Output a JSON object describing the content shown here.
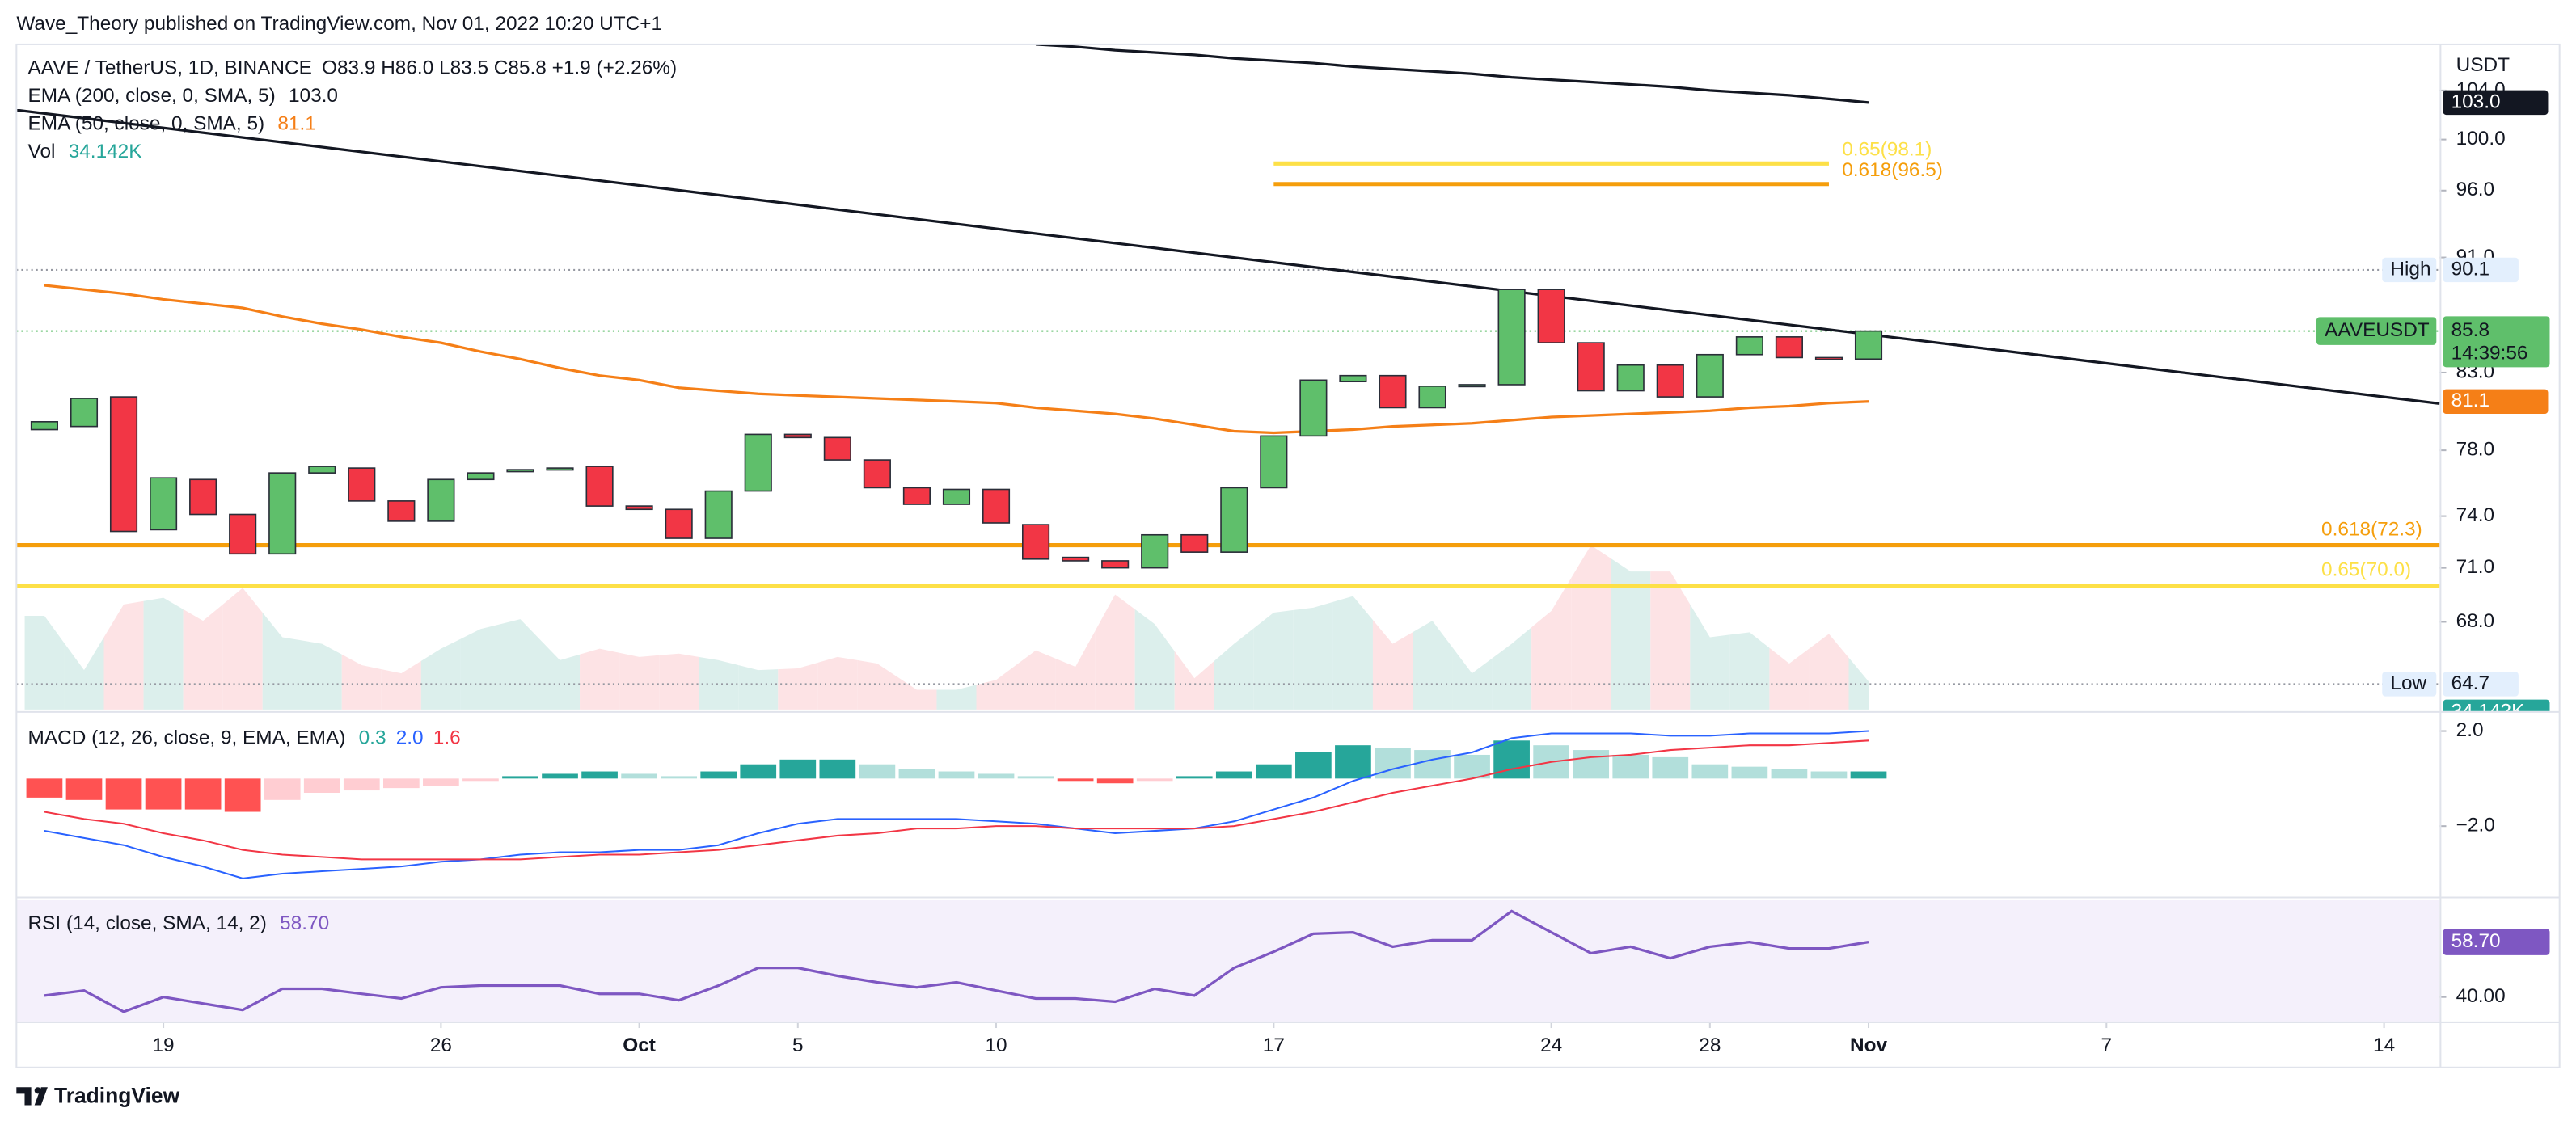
{
  "header": {
    "published": "Wave_Theory published on TradingView.com, Nov 01, 2022 10:20 UTC+1",
    "brand": "TradingView"
  },
  "chart_data": {
    "type": "candlestick",
    "title": "AAVE / TetherUS, 1D, BINANCE",
    "ohlc_legend": "O83.9 H86.0 L83.5 C85.8 +1.9 (+2.26%)",
    "symbol": "AAVEUSDT",
    "countdown": "14:39:56",
    "currency": "USDT",
    "x": [
      "2022-09-16",
      "2022-09-17",
      "2022-09-18",
      "2022-09-19",
      "2022-09-20",
      "2022-09-21",
      "2022-09-22",
      "2022-09-23",
      "2022-09-24",
      "2022-09-25",
      "2022-09-26",
      "2022-09-27",
      "2022-09-28",
      "2022-09-29",
      "2022-09-30",
      "2022-10-01",
      "2022-10-02",
      "2022-10-03",
      "2022-10-04",
      "2022-10-05",
      "2022-10-06",
      "2022-10-07",
      "2022-10-08",
      "2022-10-09",
      "2022-10-10",
      "2022-10-11",
      "2022-10-12",
      "2022-10-13",
      "2022-10-14",
      "2022-10-15",
      "2022-10-16",
      "2022-10-17",
      "2022-10-18",
      "2022-10-19",
      "2022-10-20",
      "2022-10-21",
      "2022-10-22",
      "2022-10-23",
      "2022-10-24",
      "2022-10-25",
      "2022-10-26",
      "2022-10-27",
      "2022-10-28",
      "2022-10-29",
      "2022-10-30",
      "2022-10-31",
      "2022-11-01"
    ],
    "open": [
      79.3,
      79.5,
      81.4,
      73.2,
      76.2,
      74.1,
      71.8,
      76.6,
      76.9,
      74.9,
      73.7,
      76.2,
      76.7,
      76.8,
      77.0,
      74.6,
      74.4,
      72.7,
      75.5,
      79.0,
      78.8,
      77.4,
      75.7,
      74.7,
      75.6,
      73.5,
      71.6,
      71.4,
      71.0,
      72.9,
      71.9,
      75.7,
      78.9,
      82.4,
      82.8,
      80.7,
      82.1,
      82.2,
      88.7,
      85.0,
      81.8,
      83.5,
      81.4,
      84.2,
      85.4,
      84.0,
      83.9
    ],
    "high": {
      "label": "High",
      "value": 90.1
    },
    "low": {
      "label": "Low",
      "value": 64.7
    },
    "close": [
      79.8,
      81.3,
      73.1,
      76.3,
      74.1,
      71.8,
      76.6,
      77.0,
      74.9,
      73.7,
      76.2,
      76.6,
      76.8,
      76.9,
      74.6,
      74.4,
      72.7,
      75.5,
      79.0,
      78.8,
      77.4,
      75.7,
      74.7,
      75.6,
      73.6,
      71.5,
      71.4,
      71.0,
      72.9,
      71.9,
      75.7,
      78.9,
      82.5,
      82.8,
      80.7,
      82.1,
      82.2,
      88.7,
      85.0,
      81.8,
      83.5,
      81.4,
      84.2,
      85.4,
      84.0,
      83.9,
      85.8
    ],
    "up_color": "#5fbf6b",
    "down_color": "#f23645",
    "log_scale": true,
    "grid": false,
    "ylim": [
      63.4,
      107.9
    ],
    "yticks": [
      {
        "value": 68,
        "label": "68.0"
      },
      {
        "value": 71,
        "label": "71.0"
      },
      {
        "value": 74,
        "label": "74.0"
      },
      {
        "value": 78,
        "label": "78.0"
      },
      {
        "value": 83,
        "label": "83.0"
      },
      {
        "value": 91,
        "label": "91.0"
      },
      {
        "value": 96,
        "label": "96.0"
      },
      {
        "value": 100,
        "label": "100.0"
      },
      {
        "value": 104,
        "label": "104.0"
      }
    ],
    "xlim": [
      "2022-09-15",
      "2022-11-15"
    ],
    "xticks": [
      {
        "value": "2022-09-19",
        "label": "19"
      },
      {
        "value": "2022-09-26",
        "label": "26"
      },
      {
        "value": "2022-10-01",
        "label": "Oct"
      },
      {
        "value": "2022-10-05",
        "label": "5"
      },
      {
        "value": "2022-10-10",
        "label": "10"
      },
      {
        "value": "2022-10-17",
        "label": "17"
      },
      {
        "value": "2022-10-24",
        "label": "24"
      },
      {
        "value": "2022-10-28",
        "label": "28"
      },
      {
        "value": "2022-11-01",
        "label": "Nov"
      },
      {
        "value": "2022-11-07",
        "label": "7"
      },
      {
        "value": "2022-11-14",
        "label": "14"
      }
    ],
    "series": [
      {
        "name": "EMA (200, close, 0, SMA, 5)",
        "legend_value": "103.0",
        "color": "#131722",
        "values": [
          null,
          null,
          null,
          null,
          null,
          null,
          null,
          null,
          null,
          null,
          null,
          null,
          null,
          null,
          null,
          null,
          null,
          null,
          null,
          null,
          null,
          null,
          null,
          null,
          null,
          107.9,
          107.7,
          107.4,
          107.2,
          107.0,
          106.7,
          106.5,
          106.3,
          106.0,
          105.8,
          105.6,
          105.4,
          105.1,
          104.9,
          104.7,
          104.5,
          104.3,
          104.0,
          103.8,
          103.6,
          103.3,
          103.0
        ]
      },
      {
        "name": "EMA (50, close, 0, SMA, 5)",
        "legend_value": "81.1",
        "color": "#f57f17",
        "values": [
          89.0,
          88.7,
          88.4,
          88.0,
          87.7,
          87.4,
          86.8,
          86.3,
          85.9,
          85.4,
          85.0,
          84.4,
          83.9,
          83.3,
          82.8,
          82.5,
          82.0,
          81.8,
          81.6,
          81.5,
          81.4,
          81.3,
          81.2,
          81.1,
          81.0,
          80.7,
          80.5,
          80.3,
          80.0,
          79.6,
          79.2,
          79.1,
          79.2,
          79.3,
          79.5,
          79.6,
          79.7,
          79.9,
          80.1,
          80.2,
          80.3,
          80.4,
          80.5,
          80.7,
          80.8,
          81.0,
          81.1
        ]
      }
    ],
    "volume": {
      "name": "Vol",
      "legend_value": "34.142K",
      "up_color": "#dcefec",
      "down_color": "#fde3e5",
      "label_color": "#26a69a",
      "values": [
        114,
        48,
        128,
        136,
        108,
        148,
        88,
        80,
        54,
        44,
        74,
        98,
        110,
        60,
        74,
        64,
        68,
        60,
        48,
        50,
        64,
        56,
        24,
        24,
        36,
        72,
        52,
        140,
        104,
        38,
        80,
        118,
        124,
        138,
        80,
        108,
        44,
        80,
        120,
        200,
        168,
        168,
        88,
        94,
        56,
        92,
        34.142
      ]
    },
    "trendline": {
      "color": "#131722",
      "x": [
        "2022-09-15",
        "2022-11-14"
      ],
      "values": [
        102.5,
        81.4
      ]
    },
    "levels": [
      {
        "label": "0.65(98.1)",
        "value": 98.1,
        "color": "#fde047",
        "x": [
          "2022-10-17",
          "2022-10-31"
        ]
      },
      {
        "label": "0.618(96.5)",
        "value": 96.5,
        "color": "#f59e0b",
        "x": [
          "2022-10-17",
          "2022-10-31"
        ]
      },
      {
        "label": "0.618(72.3)",
        "value": 72.3,
        "color": "#f59e0b"
      },
      {
        "label": "0.65(70.0)",
        "value": 70.0,
        "color": "#fde047"
      }
    ],
    "macd": {
      "title": "MACD (12, 26, close, 9, EMA, EMA)",
      "ylim": [
        -4.9,
        2.7
      ],
      "yticks": [
        {
          "value": 2,
          "label": "2.0"
        },
        {
          "value": -2,
          "label": "−2.0"
        }
      ],
      "histogram": {
        "legend_value": "0.3",
        "colors": [
          "#26a69a",
          "#b2dfdb",
          "#ff5252",
          "#ffcdd2"
        ],
        "values": [
          -0.8,
          -0.9,
          -1.3,
          -1.3,
          -1.3,
          -1.4,
          -0.9,
          -0.6,
          -0.5,
          -0.4,
          -0.3,
          -0.1,
          0.1,
          0.2,
          0.3,
          0.2,
          0.1,
          0.3,
          0.6,
          0.8,
          0.8,
          0.6,
          0.4,
          0.3,
          0.2,
          0.1,
          -0.1,
          -0.2,
          -0.1,
          0.1,
          0.3,
          0.6,
          1.1,
          1.4,
          1.3,
          1.2,
          1.0,
          1.6,
          1.4,
          1.2,
          1.0,
          0.9,
          0.6,
          0.5,
          0.4,
          0.3,
          0.3
        ]
      },
      "series": [
        {
          "legend_value": "2.0",
          "color": "#2962ff",
          "values": [
            -2.2,
            -2.5,
            -2.8,
            -3.3,
            -3.7,
            -4.2,
            -4.0,
            -3.9,
            -3.8,
            -3.7,
            -3.5,
            -3.4,
            -3.2,
            -3.1,
            -3.1,
            -3.0,
            -3.0,
            -2.8,
            -2.3,
            -1.9,
            -1.7,
            -1.7,
            -1.7,
            -1.7,
            -1.8,
            -1.9,
            -2.1,
            -2.3,
            -2.2,
            -2.1,
            -1.8,
            -1.3,
            -0.8,
            -0.1,
            0.4,
            0.8,
            1.1,
            1.7,
            1.9,
            1.9,
            1.9,
            1.8,
            1.8,
            1.9,
            1.9,
            1.9,
            2.0
          ]
        },
        {
          "legend_value": "1.6",
          "color": "#f23645",
          "values": [
            -1.4,
            -1.7,
            -1.9,
            -2.3,
            -2.6,
            -3.0,
            -3.2,
            -3.3,
            -3.4,
            -3.4,
            -3.4,
            -3.4,
            -3.4,
            -3.3,
            -3.2,
            -3.2,
            -3.1,
            -3.0,
            -2.8,
            -2.6,
            -2.4,
            -2.3,
            -2.1,
            -2.1,
            -2.0,
            -2.0,
            -2.1,
            -2.1,
            -2.1,
            -2.1,
            -2.0,
            -1.7,
            -1.4,
            -1.0,
            -0.6,
            -0.3,
            0.0,
            0.4,
            0.7,
            0.9,
            1.0,
            1.2,
            1.3,
            1.4,
            1.4,
            1.5,
            1.6
          ]
        }
      ]
    },
    "rsi": {
      "title": "RSI (14, close, SMA, 14, 2)",
      "legend_value": "58.70",
      "color": "#7e57c2",
      "band_color": "#f4f0fb",
      "ylim": [
        31.7,
        73.0
      ],
      "yticks": [
        {
          "value": 40,
          "label": "40.00"
        }
      ],
      "values": [
        40.5,
        42.2,
        35.0,
        40.0,
        37.8,
        35.6,
        42.8,
        42.8,
        41.1,
        39.5,
        43.3,
        43.9,
        43.9,
        43.9,
        41.1,
        41.1,
        38.9,
        43.9,
        49.9,
        49.9,
        47.2,
        45.0,
        43.3,
        45.0,
        42.2,
        39.5,
        39.5,
        38.4,
        42.8,
        40.5,
        49.9,
        55.4,
        61.5,
        62.0,
        57.1,
        59.3,
        59.3,
        69.2,
        62.0,
        54.9,
        57.1,
        53.2,
        57.1,
        58.7,
        56.5,
        56.5,
        58.7
      ]
    }
  }
}
